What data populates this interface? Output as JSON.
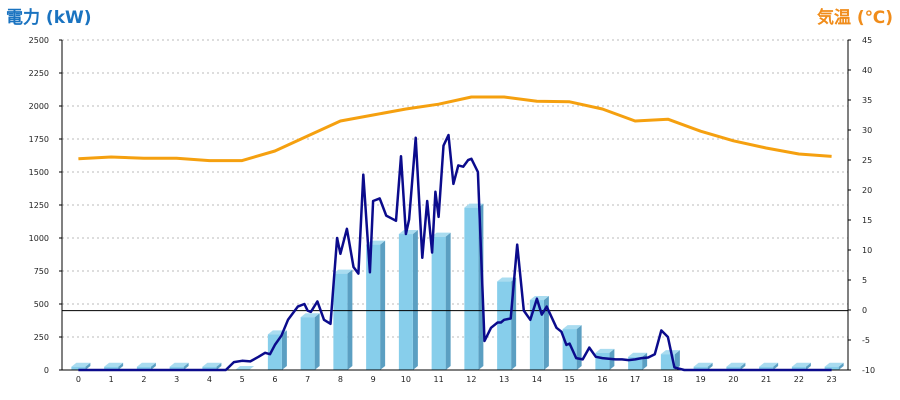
{
  "chart_data": {
    "type": "bar",
    "left_title": "電力 (kW)",
    "right_title": "気温 (℃)",
    "categories": [
      "0",
      "1",
      "2",
      "3",
      "4",
      "5",
      "6",
      "7",
      "8",
      "9",
      "10",
      "11",
      "12",
      "13",
      "14",
      "15",
      "16",
      "17",
      "18",
      "19",
      "20",
      "21",
      "22",
      "23"
    ],
    "y_left": {
      "range": [
        0,
        2500
      ],
      "ticks": [
        "0",
        "250",
        "500",
        "750",
        "1000",
        "1250",
        "1500",
        "1750",
        "2000",
        "2250",
        "2500"
      ]
    },
    "y_right": {
      "range": [
        -10,
        45
      ],
      "ticks": [
        "-10",
        "-5",
        "0",
        "5",
        "10",
        "15",
        "20",
        "25",
        "30",
        "35",
        "40",
        "45"
      ]
    },
    "grid": true,
    "reference_line": {
      "value": 450
    },
    "series": [
      {
        "type": "bar",
        "values": [
          25,
          25,
          25,
          25,
          25,
          0,
          270,
          400,
          730,
          950,
          1030,
          1010,
          1230,
          670,
          530,
          310,
          130,
          100,
          120,
          25,
          25,
          25,
          25,
          25
        ],
        "color": "#87ceeb",
        "side_color": "#5b9fc2"
      },
      {
        "type": "line",
        "axis": "right",
        "color": "#f5a00f",
        "x": [
          0,
          1,
          2,
          3,
          4,
          5,
          6,
          7,
          8,
          9,
          10,
          11,
          12,
          13,
          14,
          15,
          16,
          17,
          18,
          19,
          20,
          21,
          22,
          23
        ],
        "values": [
          25.2,
          25.5,
          25.3,
          25.3,
          24.9,
          24.9,
          26.5,
          29.0,
          31.5,
          32.5,
          33.5,
          34.3,
          35.5,
          35.5,
          34.8,
          34.7,
          33.5,
          31.5,
          31.8,
          29.8,
          28.2,
          27.0,
          26.0,
          25.6
        ]
      },
      {
        "type": "line",
        "axis": "left",
        "color": "#0b0b8c",
        "x": [
          0,
          1,
          2,
          3,
          4,
          4.5,
          4.75,
          5,
          5.25,
          5.5,
          5.7,
          5.85,
          6,
          6.2,
          6.4,
          6.7,
          6.9,
          7,
          7.1,
          7.3,
          7.5,
          7.7,
          7.9,
          8,
          8.2,
          8.4,
          8.55,
          8.7,
          8.9,
          9,
          9.2,
          9.4,
          9.55,
          9.7,
          9.85,
          10,
          10.1,
          10.3,
          10.5,
          10.65,
          10.8,
          10.9,
          11,
          11.15,
          11.3,
          11.45,
          11.6,
          11.75,
          11.9,
          12,
          12.2,
          12.4,
          12.6,
          12.8,
          12.9,
          13,
          13.2,
          13.4,
          13.6,
          13.8,
          14,
          14.15,
          14.3,
          14.45,
          14.6,
          14.75,
          14.9,
          15,
          15.2,
          15.4,
          15.6,
          15.8,
          16,
          16.2,
          16.4,
          16.6,
          16.8,
          17,
          17.2,
          17.4,
          17.6,
          17.8,
          18,
          18.2,
          18.5,
          19,
          20,
          21,
          22,
          23
        ],
        "values": [
          0,
          0,
          0,
          0,
          0,
          0,
          60,
          70,
          65,
          100,
          130,
          120,
          190,
          260,
          380,
          480,
          500,
          450,
          440,
          520,
          380,
          350,
          1000,
          880,
          1070,
          780,
          730,
          1480,
          740,
          1280,
          1300,
          1170,
          1150,
          1130,
          1620,
          1030,
          1140,
          1760,
          850,
          1280,
          890,
          1350,
          1160,
          1700,
          1780,
          1410,
          1550,
          1540,
          1590,
          1600,
          1500,
          220,
          320,
          360,
          360,
          380,
          390,
          950,
          450,
          380,
          540,
          420,
          480,
          400,
          320,
          290,
          190,
          200,
          90,
          80,
          170,
          100,
          90,
          85,
          80,
          80,
          75,
          80,
          90,
          95,
          120,
          300,
          250,
          20,
          0,
          0,
          0,
          0,
          0,
          0
        ]
      }
    ]
  }
}
